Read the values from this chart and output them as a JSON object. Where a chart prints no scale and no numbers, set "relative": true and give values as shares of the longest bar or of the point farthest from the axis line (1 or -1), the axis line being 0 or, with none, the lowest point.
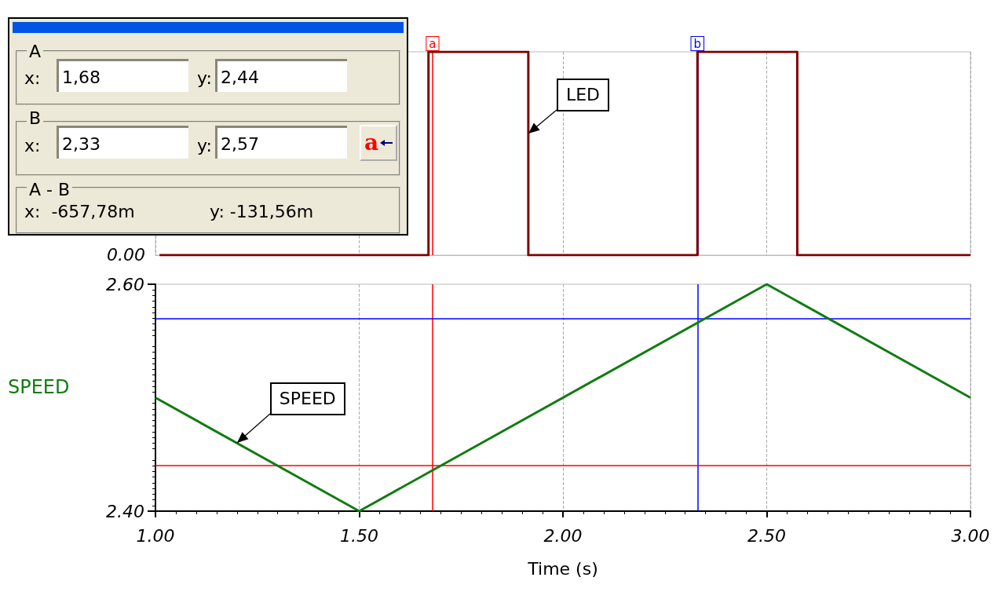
{
  "chart_data": [
    {
      "type": "step",
      "relative": true,
      "xlim": [
        1,
        3
      ],
      "xticks": [
        1,
        1.5,
        2,
        2.5,
        3
      ],
      "tick_labels": "y",
      "grid": "x",
      "marker": "none",
      "series": [
        {
          "name": "LED",
          "color": "#800000",
          "x": [
            1.01,
            1.67,
            1.915,
            2.33,
            2.575,
            3.0
          ],
          "values": [
            0,
            1,
            0,
            1,
            0,
            0
          ]
        }
      ],
      "ref_lines": [
        {
          "axis": "x",
          "value": 1.68,
          "label": "a",
          "color": "#ff0000"
        },
        {
          "axis": "x",
          "value": 2.33,
          "label": "b",
          "color": "#0000ff"
        }
      ],
      "annotations": [
        "A",
        "x:",
        "1,68",
        "y:",
        "2,44",
        "B",
        "x:",
        "2,33",
        "y:",
        "2,57",
        "a",
        "A - B",
        "x:  -657,78m",
        "y: -131,56m",
        "0.00"
      ]
    },
    {
      "type": "line",
      "xlim": [
        1,
        3
      ],
      "xticks": [
        {
          "value": 1,
          "label": "1.00"
        },
        {
          "value": 1.5,
          "label": "1.50"
        },
        {
          "value": 2,
          "label": "2.00"
        },
        {
          "value": 2.5,
          "label": "2.50"
        },
        {
          "value": 3,
          "label": "3.00"
        }
      ],
      "ylim": [
        2.4,
        2.6
      ],
      "yticks": [
        {
          "value": 2.4,
          "label": "2.40"
        },
        {
          "value": 2.6,
          "label": "2.60"
        }
      ],
      "xlabel": "Time (s)",
      "ylabel": "SPEED",
      "grid": "x",
      "marker": "none",
      "series": [
        {
          "name": "SPEED",
          "color": "#107c10",
          "x": [
            1,
            1.5,
            2.5,
            3
          ],
          "values": [
            2.5,
            2.4,
            2.6,
            2.5
          ]
        }
      ],
      "ref_lines": [
        {
          "axis": "x",
          "value": 1.68,
          "color": "#ff0000"
        },
        {
          "axis": "x",
          "value": 2.33,
          "color": "#0000ff"
        },
        {
          "axis": "y",
          "value": 2.44,
          "color": "#ff0000"
        },
        {
          "axis": "y",
          "value": 2.57,
          "color": "#0000ff"
        }
      ]
    }
  ]
}
